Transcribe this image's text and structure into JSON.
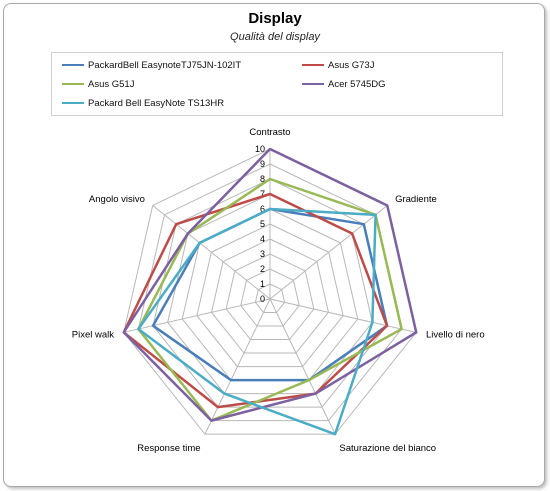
{
  "chart_data": {
    "type": "radar",
    "title": "Display",
    "subtitle": "Qualità del display",
    "axes": [
      "Contrasto",
      "Gradiente",
      "Livello di nero",
      "Saturazione del bianco",
      "Response time",
      "Pixel walk",
      "Angolo visivo"
    ],
    "range": [
      0,
      10
    ],
    "ticks": [
      "0",
      "1",
      "2",
      "3",
      "4",
      "5",
      "6",
      "7",
      "8",
      "9",
      "10"
    ],
    "legend_position": "top",
    "series": [
      {
        "name": "PackardBell EasynoteTJ75JN-102IT",
        "color": "#4a7ebb",
        "values": [
          6,
          8,
          8,
          6,
          6,
          8,
          6
        ]
      },
      {
        "name": "Asus G73J",
        "color": "#be4b48",
        "values": [
          7,
          7,
          8,
          7,
          8,
          10,
          8
        ]
      },
      {
        "name": "Asus G51J",
        "color": "#98b954",
        "values": [
          8,
          9,
          9,
          6,
          9,
          9,
          7
        ]
      },
      {
        "name": "Acer 5745DG",
        "color": "#7d60a0",
        "values": [
          10,
          10,
          10,
          7,
          9,
          10,
          7
        ]
      },
      {
        "name": "Packard Bell EasyNote  TS13HR",
        "color": "#4bacc6",
        "values": [
          6,
          9,
          7,
          10,
          7,
          9,
          6
        ]
      }
    ]
  }
}
